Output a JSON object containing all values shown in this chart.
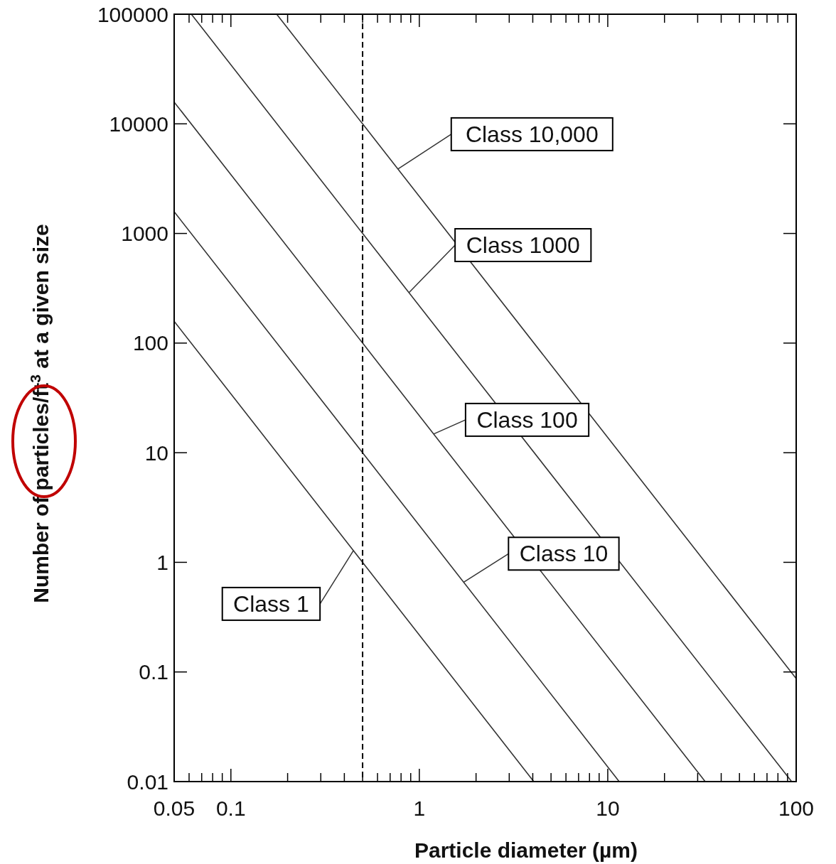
{
  "chart_data": {
    "type": "line",
    "xlabel": "Particle diameter (µm)",
    "ylabel": "Number of particles/ft$^{3}$ at a given size",
    "log": "xy",
    "grid": false,
    "marker": "none",
    "line_style": "solid",
    "xlim": [
      0.05,
      100
    ],
    "ylim": [
      0.01,
      100000
    ],
    "xticks": [
      {
        "value": 0.05,
        "label": "0.05"
      },
      {
        "value": 0.06,
        "label": null
      },
      {
        "value": 0.07,
        "label": null
      },
      {
        "value": 0.08,
        "label": null
      },
      {
        "value": 0.09,
        "label": null
      },
      {
        "value": 0.1,
        "label": "0.1"
      },
      {
        "value": 0.2,
        "label": null
      },
      {
        "value": 0.3,
        "label": null
      },
      {
        "value": 0.4,
        "label": null
      },
      {
        "value": 0.5,
        "label": null
      },
      {
        "value": 0.6,
        "label": null
      },
      {
        "value": 0.7,
        "label": null
      },
      {
        "value": 0.8,
        "label": null
      },
      {
        "value": 0.9,
        "label": null
      },
      1,
      {
        "value": 2,
        "label": null
      },
      {
        "value": 3,
        "label": null
      },
      {
        "value": 4,
        "label": null
      },
      {
        "value": 5,
        "label": null
      },
      {
        "value": 6,
        "label": null
      },
      {
        "value": 7,
        "label": null
      },
      {
        "value": 8,
        "label": null
      },
      {
        "value": 9,
        "label": null
      },
      10,
      {
        "value": 20,
        "label": null
      },
      {
        "value": 30,
        "label": null
      },
      {
        "value": 40,
        "label": null
      },
      {
        "value": 50,
        "label": null
      },
      {
        "value": 60,
        "label": null
      },
      {
        "value": 70,
        "label": null
      },
      {
        "value": 80,
        "label": null
      },
      {
        "value": 90,
        "label": null
      },
      100
    ],
    "yticks": [
      0.01,
      0.1,
      1,
      10,
      100,
      1000,
      10000,
      100000
    ],
    "series": [
      {
        "color": "#333333",
        "x": [
          0.05,
          0.5,
          4.05
        ],
        "values": [
          158,
          1,
          0.01
        ]
      },
      {
        "color": "#333333",
        "x": [
          0.05,
          0.5,
          11.5
        ],
        "values": [
          1580,
          10,
          0.01
        ]
      },
      {
        "color": "#333333",
        "x": [
          0.05,
          0.5,
          32.9
        ],
        "values": [
          15800,
          100,
          0.01
        ]
      },
      {
        "color": "#333333",
        "x": [
          0.0617,
          0.5,
          94.6
        ],
        "values": [
          100000,
          1000,
          0.01
        ]
      },
      {
        "color": "#333333",
        "x": [
          0.175,
          0.5,
          100
        ],
        "values": [
          100000,
          10000,
          0.087
        ]
      }
    ],
    "ref_lines": [
      {
        "axis": "x",
        "value": 0.5,
        "line_style": "dashed",
        "color": "#000000"
      }
    ],
    "annotations": [
      {
        "text": "Class 10,000",
        "x": 0.77,
        "y": 3870
      },
      {
        "text": "Class 1000",
        "x": 0.88,
        "y": 288
      },
      {
        "text": "Class 100",
        "x": 1.19,
        "y": 14.8
      },
      {
        "text": "Class 10",
        "x": 1.72,
        "y": 0.66
      },
      {
        "text": "Class 1",
        "x": 0.447,
        "y": 1.28
      }
    ]
  }
}
